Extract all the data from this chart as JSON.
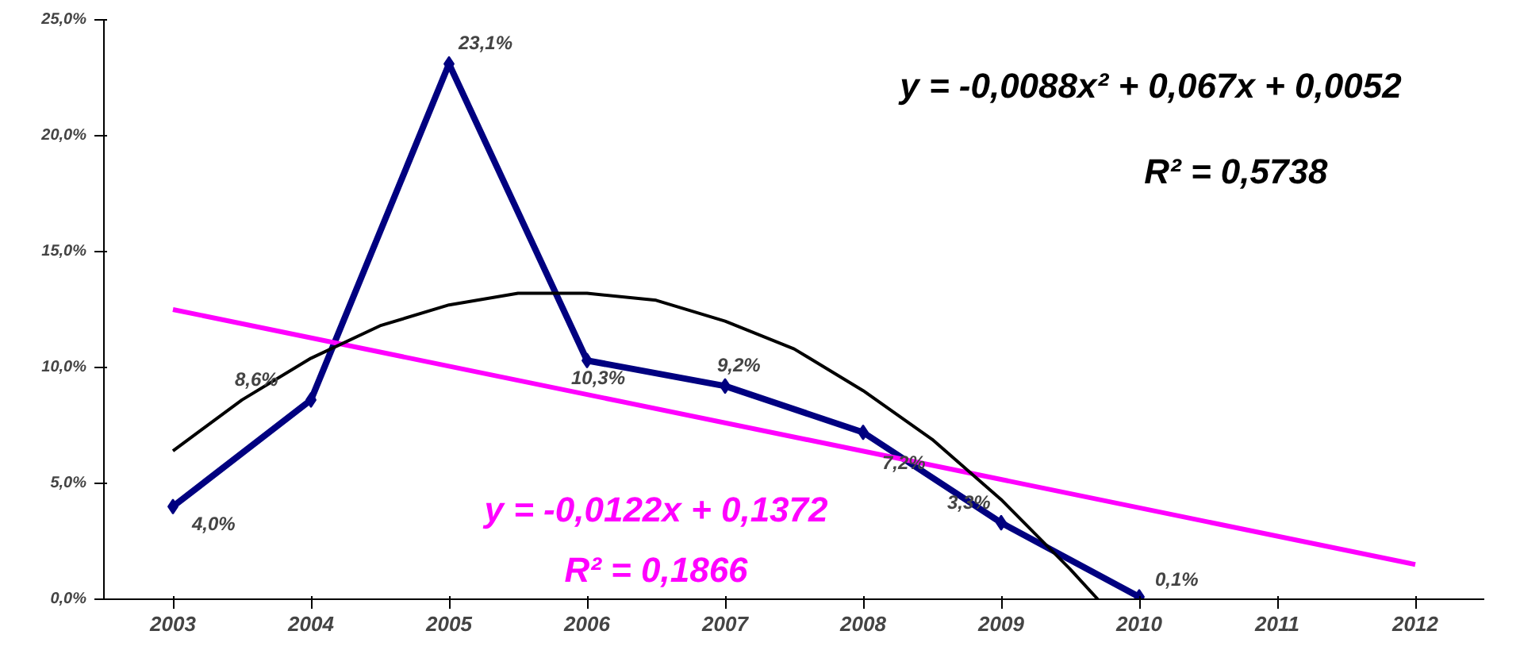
{
  "chart_data": {
    "type": "line",
    "x": [
      2003,
      2004,
      2005,
      2006,
      2007,
      2008,
      2009,
      2010
    ],
    "series": [
      {
        "color": "#000080",
        "marker": "diamond",
        "values": [
          4.0,
          8.6,
          23.1,
          10.3,
          9.2,
          7.2,
          3.3,
          0.1
        ],
        "value_labels": [
          "4,0%",
          "8,6%",
          "23,1%",
          "10,3%",
          "9,2%",
          "7,2%",
          "3,3%",
          "0,1%"
        ]
      },
      {
        "color": "#ff00ff",
        "marker": "none",
        "x": [
          2003,
          2012
        ],
        "values": [
          12.5,
          1.5
        ]
      },
      {
        "color": "#000000",
        "marker": "none",
        "x": [
          2003,
          2003.5,
          2004,
          2004.5,
          2005,
          2005.5,
          2006,
          2006.5,
          2007,
          2007.5,
          2008,
          2008.5,
          2009,
          2009.5,
          2009.7
        ],
        "values": [
          6.4,
          8.6,
          10.4,
          11.8,
          12.7,
          13.2,
          13.2,
          12.9,
          12.0,
          10.8,
          9.0,
          6.9,
          4.3,
          1.3,
          0.0
        ]
      }
    ],
    "xlim": [
      2002.5,
      2012.5
    ],
    "xticks": [
      2003,
      2004,
      2005,
      2006,
      2007,
      2008,
      2009,
      2010,
      2011,
      2012
    ],
    "ylim": [
      0,
      25
    ],
    "yticks": [
      {
        "value": 0,
        "label": "0,0%"
      },
      {
        "value": 5,
        "label": "5,0%"
      },
      {
        "value": 10,
        "label": "10,0%"
      },
      {
        "value": 15,
        "label": "15,0%"
      },
      {
        "value": 20,
        "label": "20,0%"
      },
      {
        "value": 25,
        "label": "25,0%"
      }
    ],
    "annotations": [
      "y = -0,0088x² + 0,067x + 0,0052",
      "R² = 0,5738",
      "y = -0,0122x + 0,1372",
      "R² = 0,1866"
    ],
    "grid": false
  }
}
